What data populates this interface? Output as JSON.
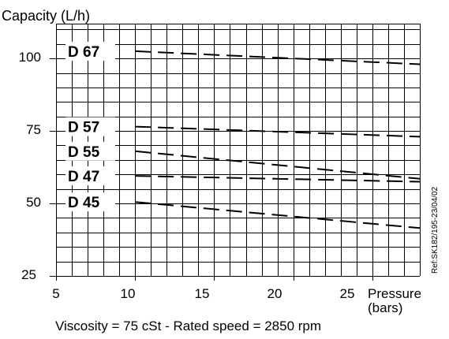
{
  "chart_data": {
    "type": "line",
    "ylabel": "Capacity (L/h)",
    "xlabel": "Pressure",
    "xlabel_unit": "(bars)",
    "xlim": [
      5,
      28
    ],
    "ylim": [
      25,
      112
    ],
    "x_ticks": [
      "5",
      "10",
      "15",
      "20",
      "25"
    ],
    "y_ticks": [
      "25",
      "50",
      "75",
      "100"
    ],
    "grid": true,
    "line_style": "dashed",
    "series": [
      {
        "name": "D 67",
        "x": [
          10,
          28
        ],
        "y": [
          102.5,
          98.0
        ]
      },
      {
        "name": "D 57",
        "x": [
          10,
          28
        ],
        "y": [
          76.5,
          73.0
        ]
      },
      {
        "name": "D 55",
        "x": [
          10,
          28
        ],
        "y": [
          68.0,
          58.5
        ]
      },
      {
        "name": "D 47",
        "x": [
          10,
          28
        ],
        "y": [
          59.5,
          57.5
        ]
      },
      {
        "name": "D 45",
        "x": [
          10,
          28
        ],
        "y": [
          50.5,
          41.5
        ]
      }
    ],
    "footnote": "Viscosity = 75 cSt - Rated speed = 2850 rpm",
    "reference": "Ref:SK182/195-23/04/02"
  }
}
